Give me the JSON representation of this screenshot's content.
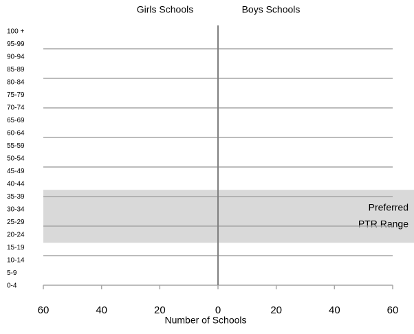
{
  "chart_data": {
    "type": "bar",
    "categories": [
      "0-4",
      "5-9",
      "10-14",
      "15-19",
      "20-24",
      "25-29",
      "30-34",
      "35-39",
      "40-44",
      "45-49",
      "50-54",
      "55-59",
      "60-64",
      "65-69",
      "70-74",
      "75-79",
      "80-84",
      "85-89",
      "90-94",
      "95-99",
      "100 +"
    ],
    "series": [
      {
        "name": "Girls Schools",
        "color": "#4472c4",
        "values": [
          null,
          null,
          null,
          null,
          null,
          null,
          null,
          null,
          null,
          null,
          null,
          null,
          null,
          null,
          null,
          null,
          null,
          null,
          null,
          null,
          null
        ]
      },
      {
        "name": "Boys Schools",
        "color": "#c0504d",
        "values": [
          null,
          null,
          null,
          null,
          null,
          null,
          null,
          null,
          null,
          null,
          null,
          null,
          null,
          null,
          null,
          null,
          null,
          null,
          null,
          null,
          null
        ]
      }
    ],
    "xlabel": "Number of Schools",
    "xlim": [
      -60,
      60
    ],
    "xticks": [
      {
        "value": -60,
        "label": "60"
      },
      {
        "value": -40,
        "label": "40"
      },
      {
        "value": -20,
        "label": "20"
      },
      0,
      20,
      40,
      60
    ],
    "highlight": {
      "from": "20-24",
      "to": "35-39",
      "color": "#d9d9d9",
      "text": [
        "Preferred",
        "PTR Range"
      ]
    }
  }
}
